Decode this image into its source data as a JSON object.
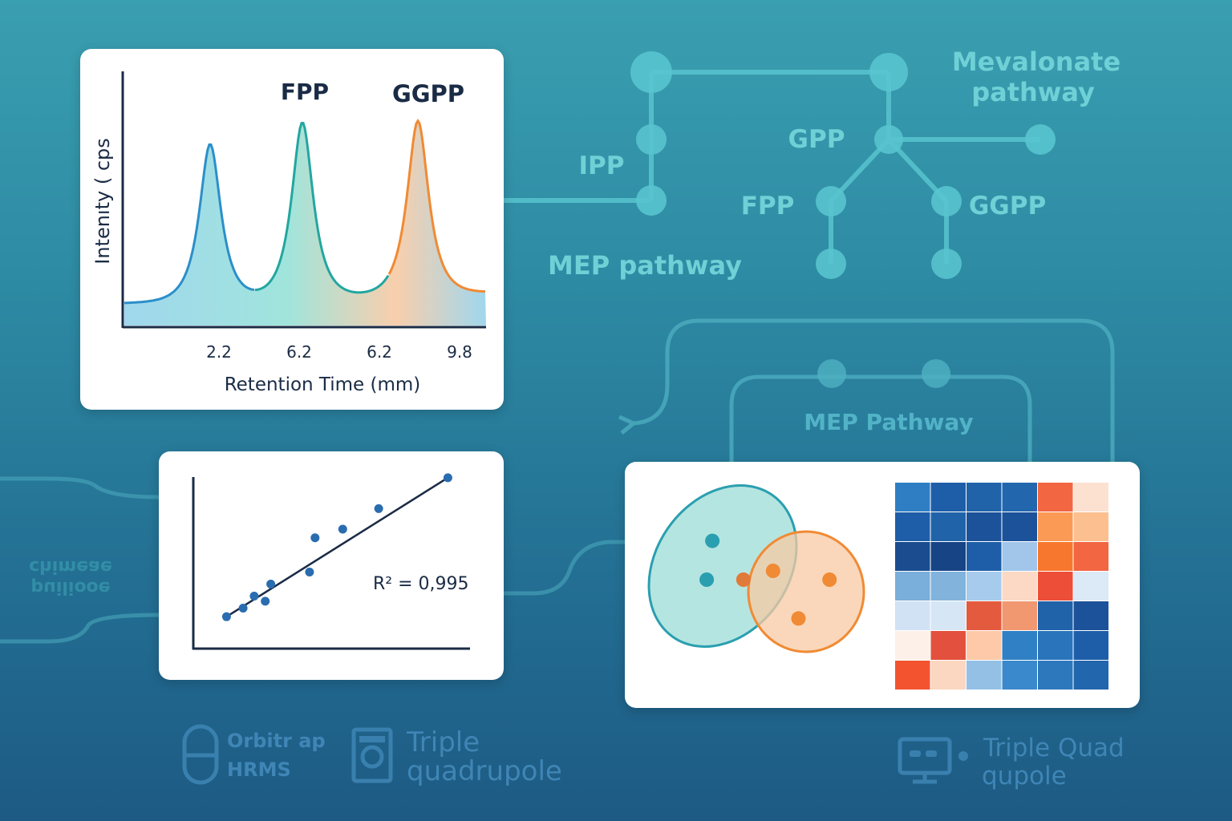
{
  "pathway": {
    "mevalonate_line1": "Mevalonate",
    "mevalonate_line2": "pathway",
    "ipp": "IPP",
    "gpp": "GPP",
    "fpp": "FPP",
    "ggpp": "GGPP",
    "mep_pathway": "MEP pathway",
    "mep_pathway_loop": "MEP Pathway",
    "mirrored_line1": "chimeae",
    "mirrored_line2": "puiliooe"
  },
  "instruments": {
    "orbitrap_line1": "Orbitr ap",
    "orbitrap_line2": "HRMS",
    "triple_quadrupole_line1": "Triple",
    "triple_quadrupole_line2": "quadrupole",
    "triple_quad_line1": "Triple Quad",
    "triple_quad_line2": "qupole"
  },
  "chart_data": [
    {
      "type": "line",
      "ylabel": "Intenıty ( cps",
      "xlabel": "Retention Time (mm)",
      "tick_labels": [
        "2.2",
        "6.2",
        "6.2",
        "9.8"
      ],
      "peaks": [
        {
          "label": "",
          "height": 0.83,
          "color": "#2b8fc9"
        },
        {
          "label": "FPP",
          "height": 0.93,
          "color": "#23a6a0"
        },
        {
          "label": "GGPP",
          "height": 0.92,
          "color": "#f08a34"
        }
      ]
    },
    {
      "type": "scatter",
      "annotation": "R² = 0,995",
      "x": [
        0.12,
        0.18,
        0.22,
        0.26,
        0.28,
        0.42,
        0.44,
        0.54,
        0.67,
        0.92
      ],
      "y": [
        0.13,
        0.18,
        0.25,
        0.22,
        0.32,
        0.39,
        0.59,
        0.64,
        0.76,
        0.94
      ],
      "trendline": [
        [
          0.12,
          0.13
        ],
        [
          0.92,
          0.94
        ]
      ]
    },
    {
      "type": "scatter",
      "clusters": [
        {
          "color": "#2a9fb0",
          "points": [
            [
              0.12,
              0.62
            ],
            [
              0.08,
              0.4
            ]
          ]
        },
        {
          "color": "#f08a34",
          "points": [
            [
              0.55,
              0.45
            ],
            [
              0.73,
              0.18
            ],
            [
              0.95,
              0.4
            ]
          ]
        },
        {
          "overlap_color": "#e07a3a",
          "points": [
            [
              0.34,
              0.4
            ]
          ]
        }
      ]
    },
    {
      "type": "heatmap",
      "rows": 7,
      "cols": 6,
      "colors": [
        [
          "#2f7ec4",
          "#1e5ea9",
          "#2063a9",
          "#2266ad",
          "#f26642",
          "#fce1d0"
        ],
        [
          "#1e5ea9",
          "#2063a9",
          "#1c529a",
          "#1c529a",
          "#fb9a55",
          "#fcbf8f"
        ],
        [
          "#1a4c8f",
          "#174485",
          "#1e5ea9",
          "#a1c6ea",
          "#f8772e",
          "#f26642"
        ],
        [
          "#7aaedb",
          "#82b3dd",
          "#a6cbec",
          "#fbd9c4",
          "#ec4e38",
          "#dce9f6"
        ],
        [
          "#d1e2f4",
          "#d6e6f5",
          "#e45a3e",
          "#f19871",
          "#2063a9",
          "#1c529a"
        ],
        [
          "#fdf0e8",
          "#e3513e",
          "#fdc9a9",
          "#3080c6",
          "#2a74bb",
          "#1e5ea9"
        ],
        [
          "#f3532f",
          "#fbd6c0",
          "#94c0e5",
          "#3a89cc",
          "#2d78bd",
          "#2266ad"
        ]
      ]
    }
  ]
}
